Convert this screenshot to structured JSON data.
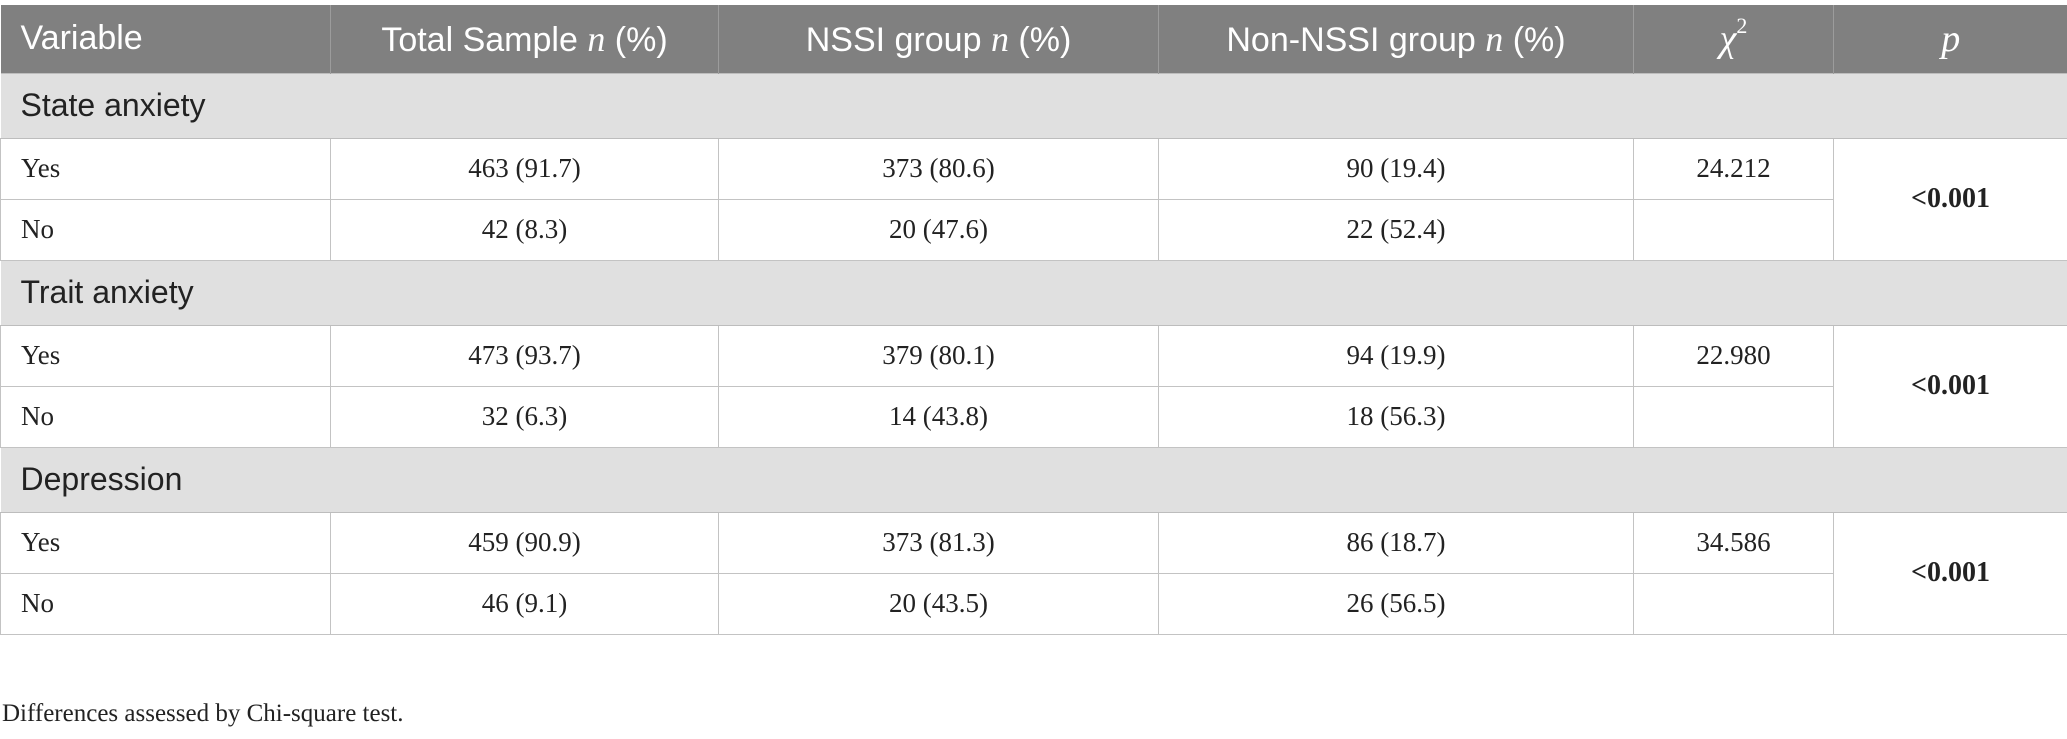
{
  "header": {
    "variable": "Variable",
    "total_label": "Total Sample ",
    "total_n": "n",
    "total_pct": " (%)",
    "nssi_label": "NSSI group ",
    "nssi_n": "n",
    "nssi_pct": " (%)",
    "non_nssi_label": "Non-NSSI group ",
    "non_nssi_n": "n",
    "non_nssi_pct": " (%)",
    "chi_symbol": "χ",
    "chi_sup": "2",
    "p_label": "p"
  },
  "sections": [
    {
      "title": "State anxiety",
      "rows": [
        {
          "label": "Yes",
          "total": "463 (91.7)",
          "nssi": "373 (80.6)",
          "non_nssi": "90 (19.4)",
          "chi2": "24.212"
        },
        {
          "label": "No",
          "total": "42 (8.3)",
          "nssi": "20 (47.6)",
          "non_nssi": "22 (52.4)",
          "chi2": ""
        }
      ],
      "p": "<0.001"
    },
    {
      "title": "Trait anxiety",
      "rows": [
        {
          "label": "Yes",
          "total": "473 (93.7)",
          "nssi": "379 (80.1)",
          "non_nssi": "94 (19.9)",
          "chi2": "22.980"
        },
        {
          "label": "No",
          "total": "32 (6.3)",
          "nssi": "14 (43.8)",
          "non_nssi": "18 (56.3)",
          "chi2": ""
        }
      ],
      "p": "<0.001"
    },
    {
      "title": "Depression",
      "rows": [
        {
          "label": "Yes",
          "total": "459 (90.9)",
          "nssi": "373 (81.3)",
          "non_nssi": "86 (18.7)",
          "chi2": "34.586"
        },
        {
          "label": "No",
          "total": "46 (9.1)",
          "nssi": "20 (43.5)",
          "non_nssi": "26 (56.5)",
          "chi2": ""
        }
      ],
      "p": "<0.001"
    }
  ],
  "footnote": "Differences assessed by Chi-square test."
}
